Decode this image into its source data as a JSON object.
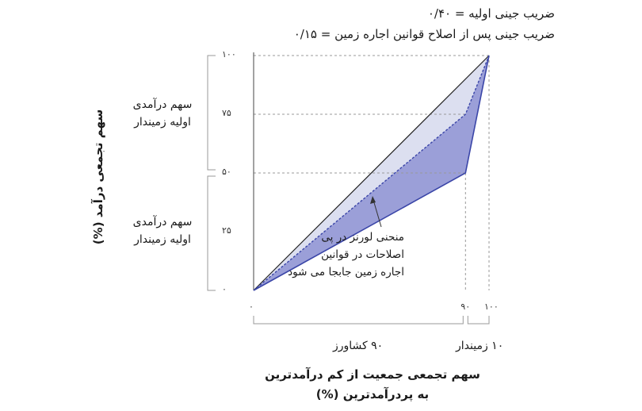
{
  "chart_data": {
    "type": "line",
    "gini_initial_label": "ضریب جینی اولیه = ۰/۴۰",
    "gini_after_label": "ضریب جینی پس از اصلاح قوانین اجاره زمین = ۰/۱۵",
    "ylabel": "سهم تجمعی درآمد (%)",
    "xlabel_line1": "سهم تجمعی جمعیت از کم درآمدترین",
    "xlabel_line2": "به پردرآمدترین (%)",
    "y_ticks": [
      "۰",
      "۲۵",
      "۵۰",
      "۷۵",
      "۱۰۰"
    ],
    "x_ticks": [
      "۰",
      "۹۰",
      "۱۰۰"
    ],
    "xlim": [
      0,
      100
    ],
    "ylim": [
      0,
      100
    ],
    "y_tick_values": [
      0,
      25,
      50,
      75,
      100
    ],
    "x_tick_values": [
      0,
      90,
      100
    ],
    "equality_line": {
      "x": [
        0,
        100
      ],
      "y": [
        0,
        100
      ]
    },
    "series": [
      {
        "x": [
          0,
          90,
          100
        ],
        "y": [
          0,
          50,
          100
        ]
      },
      {
        "x": [
          0,
          90,
          100
        ],
        "y": [
          0,
          75,
          100
        ]
      }
    ],
    "colors": {
      "initial_fill": "#9b9fd8",
      "after_fill": "#dcdff0",
      "curve_line": "#3b46a8",
      "equality_line": "#222222",
      "guide_line": "#9a9a9a"
    },
    "left_bracket_upper": [
      "سهم درآمدی",
      "اولیه زمیندار"
    ],
    "left_bracket_lower": [
      "سهم درآمدی",
      "اولیه زمیندار"
    ],
    "annotation": [
      "منحنی لورنز در پی",
      "اصلاحات در قوانین",
      "اجاره زمین جابجا می شود"
    ],
    "group_farmers": "۹۰ کشاورز",
    "group_landlords": "۱۰ زمیندار"
  }
}
